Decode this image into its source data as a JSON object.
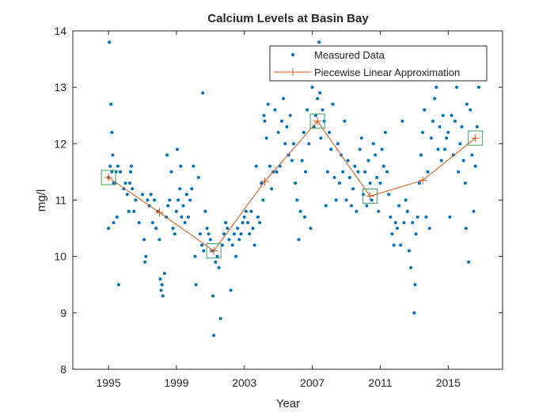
{
  "chart_data": {
    "type": "scatter",
    "title": "Calcium Levels at Basin Bay",
    "xlabel": "Year",
    "ylabel": "mg/l",
    "xlim": [
      1992.9,
      2018.2
    ],
    "ylim": [
      8,
      14
    ],
    "xticks": [
      1995,
      1999,
      2003,
      2007,
      2011,
      2015
    ],
    "yticks": [
      8,
      9,
      10,
      11,
      12,
      13,
      14
    ],
    "grid": false,
    "legend_position": "top-right",
    "series": [
      {
        "name": "Measured Data",
        "kind": "points",
        "color": "#0072BD",
        "points": [
          [
            1995.0,
            11.4
          ],
          [
            1995.05,
            13.8
          ],
          [
            1995.1,
            11.6
          ],
          [
            1995.15,
            12.7
          ],
          [
            1995.2,
            12.2
          ],
          [
            1995.2,
            11.5
          ],
          [
            1995.25,
            11.8
          ],
          [
            1995.3,
            11.3
          ],
          [
            1995.3,
            10.6
          ],
          [
            1995.0,
            10.5
          ],
          [
            1995.4,
            11.3
          ],
          [
            1995.45,
            11.5
          ],
          [
            1995.5,
            10.7
          ],
          [
            1995.55,
            11.6
          ],
          [
            1995.6,
            9.5
          ],
          [
            1995.7,
            11.5
          ],
          [
            1995.9,
            11.2
          ],
          [
            1996.0,
            11.3
          ],
          [
            1996.1,
            11.1
          ],
          [
            1996.2,
            10.8
          ],
          [
            1996.25,
            11.3
          ],
          [
            1996.3,
            11.5
          ],
          [
            1996.35,
            11.6
          ],
          [
            1996.4,
            11.2
          ],
          [
            1996.5,
            10.8
          ],
          [
            1996.6,
            11.0
          ],
          [
            1996.8,
            10.6
          ],
          [
            1997.0,
            11.1
          ],
          [
            1997.1,
            10.3
          ],
          [
            1997.15,
            9.9
          ],
          [
            1997.2,
            10.0
          ],
          [
            1997.3,
            11.0
          ],
          [
            1997.4,
            10.9
          ],
          [
            1997.5,
            11.1
          ],
          [
            1997.6,
            10.6
          ],
          [
            1997.7,
            11.0
          ],
          [
            1997.8,
            10.5
          ],
          [
            1997.9,
            10.8
          ],
          [
            1998.0,
            10.3
          ],
          [
            1998.05,
            9.6
          ],
          [
            1998.1,
            9.4
          ],
          [
            1998.15,
            9.5
          ],
          [
            1998.2,
            9.3
          ],
          [
            1998.3,
            9.7
          ],
          [
            1998.4,
            10.7
          ],
          [
            1998.45,
            11.8
          ],
          [
            1998.5,
            10.9
          ],
          [
            1998.6,
            11.0
          ],
          [
            1998.7,
            11.5
          ],
          [
            1998.8,
            10.5
          ],
          [
            1998.9,
            10.4
          ],
          [
            1999.0,
            10.8
          ],
          [
            1999.05,
            11.9
          ],
          [
            1999.1,
            11.0
          ],
          [
            1999.2,
            11.2
          ],
          [
            1999.25,
            11.6
          ],
          [
            1999.3,
            10.7
          ],
          [
            1999.4,
            10.9
          ],
          [
            1999.5,
            10.6
          ],
          [
            1999.6,
            11.1
          ],
          [
            1999.7,
            10.7
          ],
          [
            1999.8,
            11.0
          ],
          [
            1999.9,
            11.2
          ],
          [
            2000.0,
            11.6
          ],
          [
            2000.1,
            10.0
          ],
          [
            2000.15,
            9.5
          ],
          [
            2000.3,
            11.4
          ],
          [
            2000.4,
            10.4
          ],
          [
            2000.5,
            10.2
          ],
          [
            2000.55,
            12.9
          ],
          [
            2000.6,
            10.1
          ],
          [
            2000.7,
            10.8
          ],
          [
            2000.8,
            10.5
          ],
          [
            2000.9,
            10.4
          ],
          [
            2001.0,
            10.3
          ],
          [
            2001.1,
            10.1
          ],
          [
            2001.15,
            9.3
          ],
          [
            2001.2,
            8.6
          ],
          [
            2001.3,
            9.9
          ],
          [
            2001.4,
            10.0
          ],
          [
            2001.5,
            9.8
          ],
          [
            2001.6,
            8.9
          ],
          [
            2001.7,
            10.2
          ],
          [
            2001.8,
            10.4
          ],
          [
            2001.9,
            10.6
          ],
          [
            2002.0,
            10.5
          ],
          [
            2002.1,
            10.3
          ],
          [
            2002.2,
            9.4
          ],
          [
            2002.3,
            10.2
          ],
          [
            2002.4,
            10.4
          ],
          [
            2002.5,
            10.0
          ],
          [
            2002.6,
            10.5
          ],
          [
            2002.7,
            10.3
          ],
          [
            2002.8,
            10.4
          ],
          [
            2002.9,
            10.6
          ],
          [
            2003.0,
            10.7
          ],
          [
            2003.1,
            10.8
          ],
          [
            2003.2,
            10.6
          ],
          [
            2003.3,
            10.4
          ],
          [
            2003.4,
            10.8
          ],
          [
            2003.5,
            10.5
          ],
          [
            2003.6,
            10.2
          ],
          [
            2003.7,
            11.6
          ],
          [
            2003.8,
            10.7
          ],
          [
            2003.9,
            10.6
          ],
          [
            2004.0,
            11.3
          ],
          [
            2004.1,
            11.0
          ],
          [
            2004.15,
            12.5
          ],
          [
            2004.2,
            12.4
          ],
          [
            2004.3,
            12.1
          ],
          [
            2004.4,
            12.7
          ],
          [
            2004.5,
            11.6
          ],
          [
            2004.6,
            11.2
          ],
          [
            2004.7,
            11.5
          ],
          [
            2004.8,
            12.6
          ],
          [
            2004.9,
            11.5
          ],
          [
            2005.0,
            12.2
          ],
          [
            2005.1,
            11.6
          ],
          [
            2005.2,
            12.4
          ],
          [
            2005.3,
            12.8
          ],
          [
            2005.4,
            12.0
          ],
          [
            2005.5,
            12.3
          ],
          [
            2005.6,
            11.8
          ],
          [
            2005.7,
            12.5
          ],
          [
            2005.8,
            11.7
          ],
          [
            2005.9,
            12.0
          ],
          [
            2006.0,
            11.3
          ],
          [
            2006.1,
            11.0
          ],
          [
            2006.2,
            10.3
          ],
          [
            2006.3,
            10.8
          ],
          [
            2006.4,
            11.7
          ],
          [
            2006.5,
            12.2
          ],
          [
            2006.55,
            10.7
          ],
          [
            2006.6,
            11.5
          ],
          [
            2006.7,
            12.6
          ],
          [
            2006.8,
            12.0
          ],
          [
            2006.9,
            10.5
          ],
          [
            2007.0,
            13.0
          ],
          [
            2007.1,
            12.3
          ],
          [
            2007.2,
            12.5
          ],
          [
            2007.3,
            12.8
          ],
          [
            2007.4,
            13.8
          ],
          [
            2007.45,
            12.9
          ],
          [
            2007.5,
            12.1
          ],
          [
            2007.6,
            12.6
          ],
          [
            2007.7,
            12.4
          ],
          [
            2007.8,
            10.9
          ],
          [
            2007.9,
            11.5
          ],
          [
            2008.0,
            12.2
          ],
          [
            2008.1,
            11.9
          ],
          [
            2008.2,
            12.7
          ],
          [
            2008.3,
            11.4
          ],
          [
            2008.4,
            11.0
          ],
          [
            2008.5,
            12.0
          ],
          [
            2008.6,
            11.3
          ],
          [
            2008.7,
            11.8
          ],
          [
            2008.8,
            11.5
          ],
          [
            2008.9,
            12.4
          ],
          [
            2009.0,
            11.0
          ],
          [
            2009.1,
            11.7
          ],
          [
            2009.2,
            11.4
          ],
          [
            2009.3,
            10.9
          ],
          [
            2009.4,
            11.2
          ],
          [
            2009.5,
            11.6
          ],
          [
            2009.6,
            10.8
          ],
          [
            2009.7,
            11.5
          ],
          [
            2009.8,
            11.9
          ],
          [
            2009.9,
            12.1
          ],
          [
            2010.0,
            11.1
          ],
          [
            2010.1,
            11.5
          ],
          [
            2010.2,
            10.9
          ],
          [
            2010.3,
            11.7
          ],
          [
            2010.4,
            11.3
          ],
          [
            2010.5,
            11.0
          ],
          [
            2010.6,
            12.0
          ],
          [
            2010.7,
            11.8
          ],
          [
            2010.8,
            11.4
          ],
          [
            2010.9,
            10.8
          ],
          [
            2011.0,
            11.3
          ],
          [
            2011.1,
            11.9
          ],
          [
            2011.2,
            11.6
          ],
          [
            2011.3,
            12.2
          ],
          [
            2011.4,
            11.5
          ],
          [
            2011.5,
            11.1
          ],
          [
            2011.6,
            10.7
          ],
          [
            2011.7,
            10.4
          ],
          [
            2011.8,
            10.2
          ],
          [
            2011.9,
            10.6
          ],
          [
            2012.0,
            10.5
          ],
          [
            2012.1,
            10.9
          ],
          [
            2012.2,
            10.2
          ],
          [
            2012.3,
            12.4
          ],
          [
            2012.4,
            10.6
          ],
          [
            2012.5,
            11.0
          ],
          [
            2012.6,
            10.8
          ],
          [
            2012.7,
            10.1
          ],
          [
            2012.8,
            9.8
          ],
          [
            2012.9,
            10.6
          ],
          [
            2013.0,
            9.0
          ],
          [
            2013.05,
            9.5
          ],
          [
            2013.1,
            10.4
          ],
          [
            2013.2,
            10.7
          ],
          [
            2013.3,
            11.3
          ],
          [
            2013.4,
            11.8
          ],
          [
            2013.5,
            12.2
          ],
          [
            2013.6,
            12.6
          ],
          [
            2013.7,
            10.7
          ],
          [
            2013.8,
            11.5
          ],
          [
            2013.9,
            10.5
          ],
          [
            2014.0,
            12.1
          ],
          [
            2014.1,
            12.4
          ],
          [
            2014.2,
            12.8
          ],
          [
            2014.3,
            13.0
          ],
          [
            2014.4,
            11.9
          ],
          [
            2014.5,
            12.3
          ],
          [
            2014.6,
            11.7
          ],
          [
            2014.7,
            12.5
          ],
          [
            2014.8,
            11.9
          ],
          [
            2014.9,
            12.1
          ],
          [
            2015.0,
            12.2
          ],
          [
            2015.1,
            10.7
          ],
          [
            2015.2,
            12.5
          ],
          [
            2015.3,
            11.8
          ],
          [
            2015.4,
            12.4
          ],
          [
            2015.5,
            13.0
          ],
          [
            2015.6,
            11.5
          ],
          [
            2015.7,
            12.0
          ],
          [
            2015.8,
            12.3
          ],
          [
            2015.9,
            11.7
          ],
          [
            2016.0,
            11.3
          ],
          [
            2016.05,
            10.5
          ],
          [
            2016.1,
            12.7
          ],
          [
            2016.2,
            9.9
          ],
          [
            2016.3,
            12.6
          ],
          [
            2016.4,
            11.8
          ],
          [
            2016.5,
            10.8
          ],
          [
            2016.6,
            11.6
          ],
          [
            2016.7,
            12.3
          ],
          [
            2016.8,
            13.0
          ]
        ]
      },
      {
        "name": "Piecewise Linear Approximation",
        "kind": "line",
        "color": "#D95319",
        "points": [
          [
            1995.0,
            11.4
          ],
          [
            1998.0,
            10.78
          ],
          [
            2001.2,
            10.1
          ],
          [
            2004.2,
            11.33
          ],
          [
            2007.3,
            12.4
          ],
          [
            2010.4,
            11.07
          ],
          [
            2013.5,
            11.35
          ],
          [
            2016.6,
            12.1
          ]
        ]
      }
    ],
    "breakpoints": {
      "color": "#3BA55C",
      "points": [
        [
          1995.0,
          11.4
        ],
        [
          2001.2,
          10.1
        ],
        [
          2007.3,
          12.4
        ],
        [
          2010.4,
          11.07
        ],
        [
          2016.6,
          12.1
        ]
      ]
    }
  }
}
